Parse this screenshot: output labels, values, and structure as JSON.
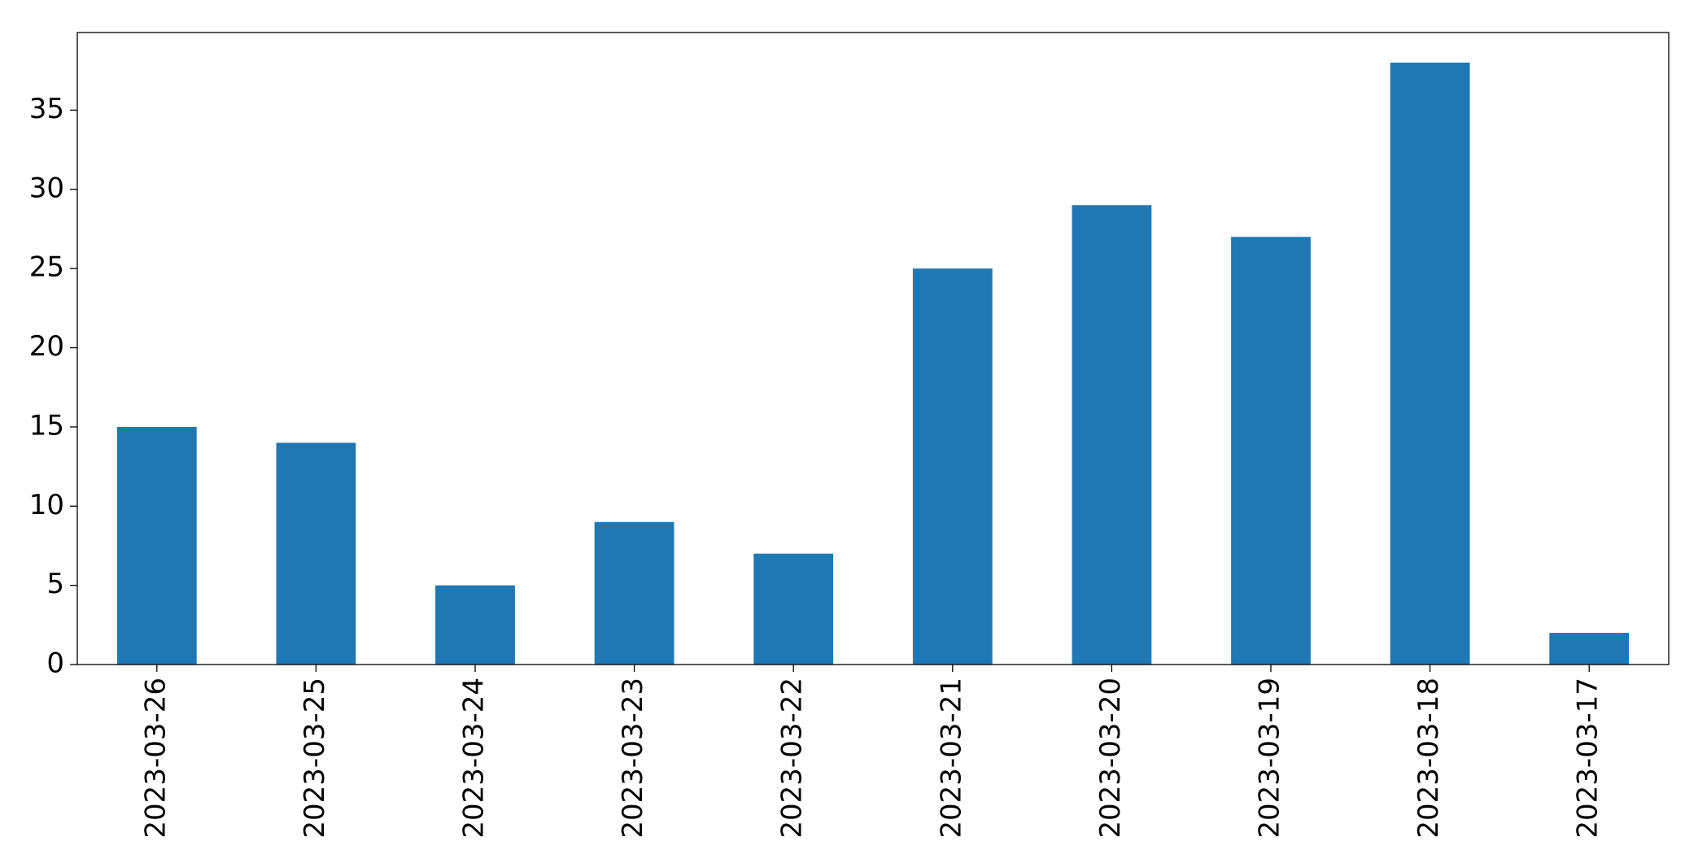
{
  "chart_data": {
    "type": "bar",
    "categories": [
      "2023-03-26",
      "2023-03-25",
      "2023-03-24",
      "2023-03-23",
      "2023-03-22",
      "2023-03-21",
      "2023-03-20",
      "2023-03-19",
      "2023-03-18",
      "2023-03-17"
    ],
    "values": [
      15,
      14,
      5,
      9,
      7,
      25,
      29,
      27,
      38,
      2
    ],
    "color": "#1f77b4",
    "ylim": [
      0,
      39.9
    ],
    "yticks": [
      0,
      5,
      10,
      15,
      20,
      25,
      30,
      35
    ],
    "grid": false
  }
}
